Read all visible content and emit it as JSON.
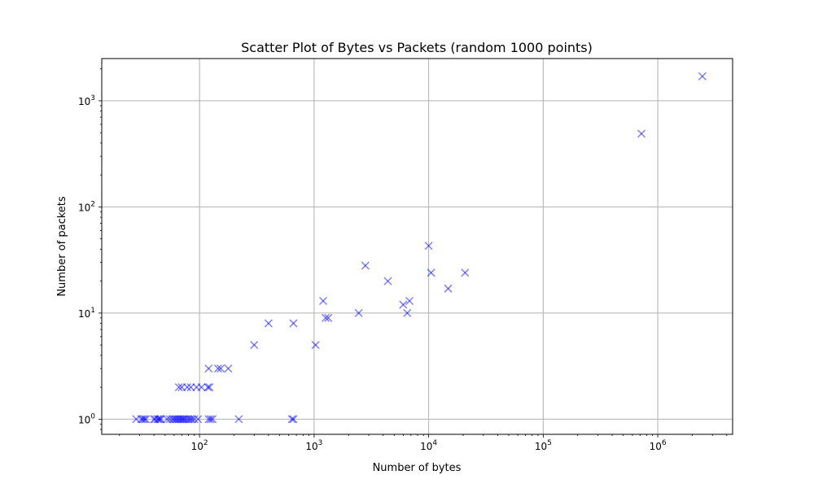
{
  "chart_data": {
    "type": "scatter",
    "title": "Scatter Plot of Bytes vs Packets (random 1000 points)",
    "xlabel": "Number of bytes",
    "ylabel": "Number of packets",
    "xscale": "log",
    "yscale": "log",
    "xlim": [
      14,
      4500000
    ],
    "ylim": [
      0.72,
      2500
    ],
    "grid": true,
    "marker": "x",
    "marker_color": "#0000ff",
    "marker_alpha": 0.5,
    "x_ticks": [
      {
        "value": 100,
        "base": "10",
        "exp": "2"
      },
      {
        "value": 1000,
        "base": "10",
        "exp": "3"
      },
      {
        "value": 10000,
        "base": "10",
        "exp": "4"
      },
      {
        "value": 100000,
        "base": "10",
        "exp": "5"
      },
      {
        "value": 1000000,
        "base": "10",
        "exp": "6"
      }
    ],
    "y_ticks": [
      {
        "value": 1,
        "base": "10",
        "exp": "0"
      },
      {
        "value": 10,
        "base": "10",
        "exp": "1"
      },
      {
        "value": 100,
        "base": "10",
        "exp": "2"
      },
      {
        "value": 1000,
        "base": "10",
        "exp": "3"
      }
    ],
    "points": [
      {
        "x": 28,
        "y": 1
      },
      {
        "x": 31,
        "y": 1
      },
      {
        "x": 32,
        "y": 1
      },
      {
        "x": 33,
        "y": 1
      },
      {
        "x": 34,
        "y": 1
      },
      {
        "x": 40,
        "y": 1
      },
      {
        "x": 41,
        "y": 1
      },
      {
        "x": 43,
        "y": 1
      },
      {
        "x": 44,
        "y": 1
      },
      {
        "x": 45,
        "y": 1
      },
      {
        "x": 46,
        "y": 1
      },
      {
        "x": 52,
        "y": 1
      },
      {
        "x": 55,
        "y": 1
      },
      {
        "x": 58,
        "y": 1
      },
      {
        "x": 60,
        "y": 1
      },
      {
        "x": 62,
        "y": 1
      },
      {
        "x": 64,
        "y": 1
      },
      {
        "x": 66,
        "y": 1
      },
      {
        "x": 68,
        "y": 1
      },
      {
        "x": 70,
        "y": 1
      },
      {
        "x": 72,
        "y": 1
      },
      {
        "x": 74,
        "y": 1
      },
      {
        "x": 77,
        "y": 1
      },
      {
        "x": 80,
        "y": 1
      },
      {
        "x": 83,
        "y": 1
      },
      {
        "x": 86,
        "y": 1
      },
      {
        "x": 90,
        "y": 1
      },
      {
        "x": 97,
        "y": 1
      },
      {
        "x": 120,
        "y": 1
      },
      {
        "x": 125,
        "y": 1
      },
      {
        "x": 130,
        "y": 1
      },
      {
        "x": 220,
        "y": 1
      },
      {
        "x": 640,
        "y": 1
      },
      {
        "x": 660,
        "y": 1
      },
      {
        "x": 66,
        "y": 2
      },
      {
        "x": 70,
        "y": 2
      },
      {
        "x": 78,
        "y": 2
      },
      {
        "x": 84,
        "y": 2
      },
      {
        "x": 94,
        "y": 2
      },
      {
        "x": 104,
        "y": 2
      },
      {
        "x": 118,
        "y": 2
      },
      {
        "x": 122,
        "y": 2
      },
      {
        "x": 120,
        "y": 3
      },
      {
        "x": 145,
        "y": 3
      },
      {
        "x": 153,
        "y": 3
      },
      {
        "x": 178,
        "y": 3
      },
      {
        "x": 300,
        "y": 5
      },
      {
        "x": 1030,
        "y": 5
      },
      {
        "x": 400,
        "y": 8
      },
      {
        "x": 660,
        "y": 8
      },
      {
        "x": 1260,
        "y": 9
      },
      {
        "x": 1330,
        "y": 9
      },
      {
        "x": 2450,
        "y": 10
      },
      {
        "x": 6500,
        "y": 10
      },
      {
        "x": 1200,
        "y": 13
      },
      {
        "x": 6000,
        "y": 12
      },
      {
        "x": 6800,
        "y": 13
      },
      {
        "x": 2800,
        "y": 28
      },
      {
        "x": 4400,
        "y": 20
      },
      {
        "x": 10000,
        "y": 43
      },
      {
        "x": 10500,
        "y": 24
      },
      {
        "x": 14800,
        "y": 17
      },
      {
        "x": 20800,
        "y": 24
      },
      {
        "x": 720000,
        "y": 490
      },
      {
        "x": 2450000,
        "y": 1700
      }
    ]
  }
}
